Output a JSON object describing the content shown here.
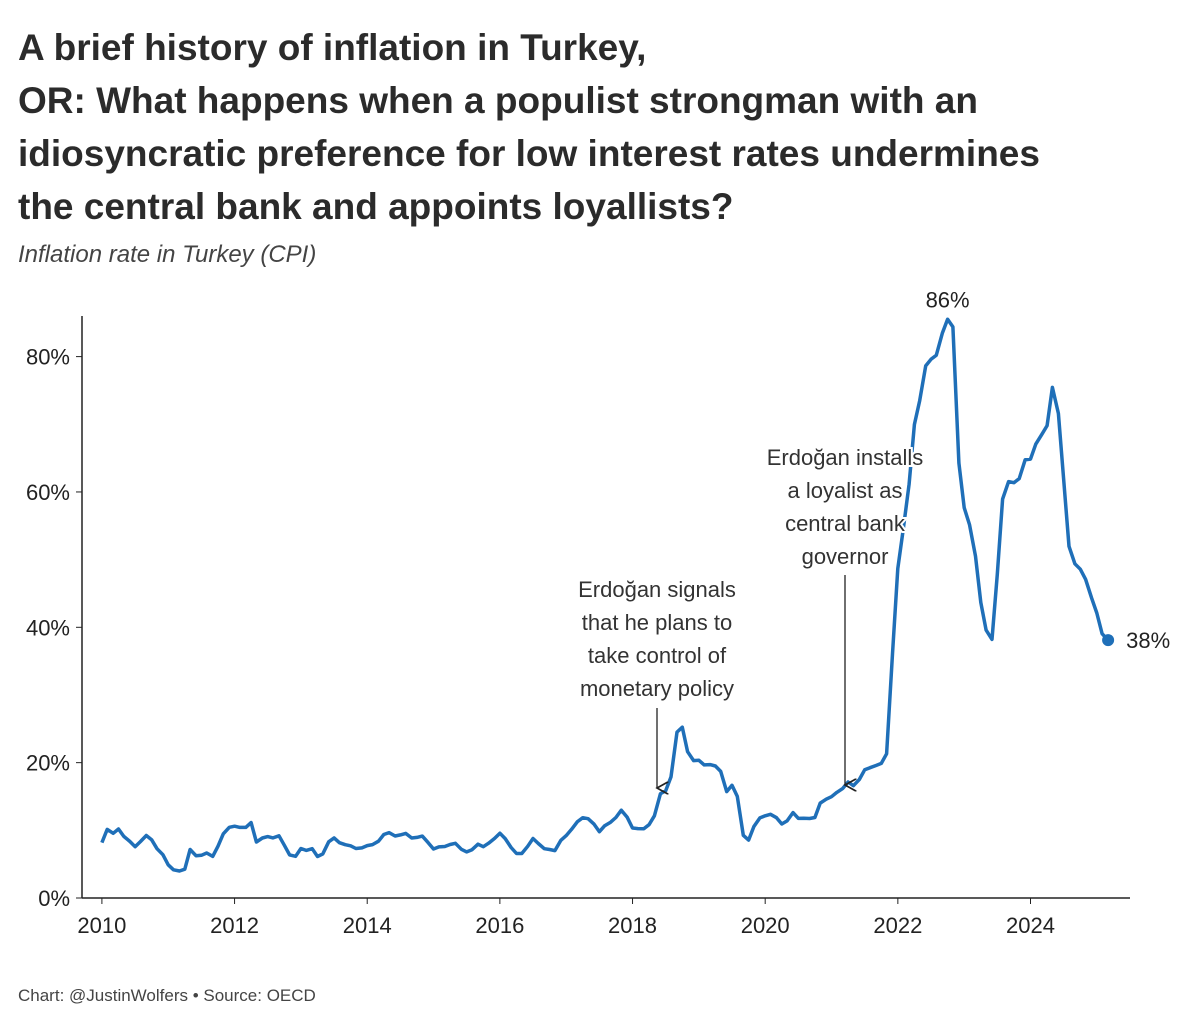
{
  "chart_data": {
    "type": "line",
    "title": [
      "A brief history of inflation in Turkey,",
      "OR: What happens when a populist strongman with an",
      "idiosyncratic preference for low interest rates undermines",
      "the central bank and appoints loyallists?"
    ],
    "subtitle": "Inflation rate in Turkey (CPI)",
    "footer": "Chart: @JustinWolfers • Source: OECD",
    "color": "#1f6fb8",
    "x": [
      2010,
      2010.08,
      2010.17,
      2010.25,
      2010.33,
      2010.42,
      2010.5,
      2010.58,
      2010.67,
      2010.75,
      2010.83,
      2010.92,
      2011,
      2011.08,
      2011.17,
      2011.25,
      2011.33,
      2011.42,
      2011.5,
      2011.58,
      2011.67,
      2011.75,
      2011.83,
      2011.92,
      2012,
      2012.08,
      2012.17,
      2012.25,
      2012.33,
      2012.42,
      2012.5,
      2012.58,
      2012.67,
      2012.75,
      2012.83,
      2012.92,
      2013,
      2013.08,
      2013.17,
      2013.25,
      2013.33,
      2013.42,
      2013.5,
      2013.58,
      2013.67,
      2013.75,
      2013.83,
      2013.92,
      2014,
      2014.08,
      2014.17,
      2014.25,
      2014.33,
      2014.42,
      2014.5,
      2014.58,
      2014.67,
      2014.75,
      2014.83,
      2014.92,
      2015,
      2015.08,
      2015.17,
      2015.25,
      2015.33,
      2015.42,
      2015.5,
      2015.58,
      2015.67,
      2015.75,
      2015.83,
      2015.92,
      2016,
      2016.08,
      2016.17,
      2016.25,
      2016.33,
      2016.42,
      2016.5,
      2016.58,
      2016.67,
      2016.75,
      2016.83,
      2016.92,
      2017,
      2017.08,
      2017.17,
      2017.25,
      2017.33,
      2017.42,
      2017.5,
      2017.58,
      2017.67,
      2017.75,
      2017.83,
      2017.92,
      2018,
      2018.08,
      2018.17,
      2018.25,
      2018.33,
      2018.42,
      2018.5,
      2018.58,
      2018.67,
      2018.75,
      2018.83,
      2018.92,
      2019,
      2019.08,
      2019.17,
      2019.25,
      2019.33,
      2019.42,
      2019.5,
      2019.58,
      2019.67,
      2019.75,
      2019.83,
      2019.92,
      2020,
      2020.08,
      2020.17,
      2020.25,
      2020.33,
      2020.42,
      2020.5,
      2020.58,
      2020.67,
      2020.75,
      2020.83,
      2020.92,
      2021,
      2021.08,
      2021.17,
      2021.25,
      2021.33,
      2021.42,
      2021.5,
      2021.58,
      2021.67,
      2021.75,
      2021.83,
      2021.92,
      2022,
      2022.08,
      2022.17,
      2022.25,
      2022.33,
      2022.42,
      2022.5,
      2022.58,
      2022.67,
      2022.75,
      2022.83,
      2022.92,
      2023,
      2023.08,
      2023.17,
      2023.25,
      2023.33,
      2023.42,
      2023.5,
      2023.58,
      2023.67,
      2023.75,
      2023.83,
      2023.92,
      2024,
      2024.08,
      2024.17,
      2024.25,
      2024.33,
      2024.42,
      2024.5,
      2024.58,
      2024.67,
      2024.75,
      2024.83,
      2024.92,
      2025,
      2025.08,
      2025.17
    ],
    "values": [
      8.19,
      10.13,
      9.56,
      10.19,
      9.1,
      8.37,
      7.58,
      8.33,
      9.24,
      8.62,
      7.29,
      6.4,
      4.9,
      4.16,
      3.99,
      4.26,
      7.17,
      6.24,
      6.31,
      6.65,
      6.15,
      7.66,
      9.48,
      10.45,
      10.61,
      10.43,
      10.43,
      11.14,
      8.28,
      8.87,
      9.07,
      8.88,
      9.19,
      7.8,
      6.37,
      6.16,
      7.31,
      7.03,
      7.29,
      6.13,
      6.51,
      8.3,
      8.88,
      8.17,
      7.88,
      7.71,
      7.32,
      7.4,
      7.75,
      7.89,
      8.39,
      9.38,
      9.66,
      9.16,
      9.32,
      9.54,
      8.86,
      8.96,
      9.15,
      8.17,
      7.24,
      7.55,
      7.61,
      7.91,
      8.09,
      7.2,
      6.81,
      7.14,
      7.95,
      7.58,
      8.1,
      8.81,
      9.58,
      8.78,
      7.46,
      6.57,
      6.58,
      7.64,
      8.79,
      8.05,
      7.28,
      7.16,
      7.0,
      8.53,
      9.22,
      10.13,
      11.29,
      11.87,
      11.72,
      10.9,
      9.79,
      10.68,
      11.2,
      11.9,
      12.98,
      11.92,
      10.35,
      10.26,
      10.23,
      10.85,
      12.15,
      15.39,
      15.85,
      17.9,
      24.52,
      25.24,
      21.62,
      20.3,
      20.35,
      19.67,
      19.71,
      19.5,
      18.71,
      15.72,
      16.65,
      15.01,
      9.26,
      8.55,
      10.56,
      11.84,
      12.15,
      12.37,
      11.86,
      10.94,
      11.39,
      12.62,
      11.76,
      11.77,
      11.75,
      11.89,
      14.03,
      14.6,
      14.97,
      15.61,
      16.19,
      17.14,
      16.59,
      17.53,
      18.95,
      19.25,
      19.58,
      19.89,
      21.31,
      36.08,
      48.69,
      54.44,
      61.14,
      69.97,
      73.5,
      78.62,
      79.6,
      80.21,
      83.45,
      85.51,
      84.39,
      64.27,
      57.68,
      55.18,
      50.51,
      43.68,
      39.59,
      38.21,
      47.83,
      58.94,
      61.53,
      61.36,
      61.98,
      64.77,
      64.86,
      67.07,
      68.5,
      69.8,
      75.45,
      71.6,
      61.78,
      51.97,
      49.38,
      48.58,
      47.09,
      44.38,
      42.12,
      39.05,
      38.1
    ],
    "value_labels": [
      null,
      null,
      null,
      null,
      null,
      null,
      null,
      null,
      null,
      null,
      null,
      null,
      null,
      null,
      null,
      null,
      null,
      null,
      null,
      null,
      null,
      null,
      null,
      null,
      null,
      null,
      null,
      null,
      null,
      null,
      null,
      null,
      null,
      null,
      null,
      null,
      null,
      null,
      null,
      null,
      null,
      null,
      null,
      null,
      null,
      null,
      null,
      null,
      null,
      null,
      null,
      null,
      null,
      null,
      null,
      null,
      null,
      null,
      null,
      null,
      null,
      null,
      null,
      null,
      null,
      null,
      null,
      null,
      null,
      null,
      null,
      null,
      null,
      null,
      null,
      null,
      null,
      null,
      null,
      null,
      null,
      null,
      null,
      null,
      null,
      null,
      null,
      null,
      null,
      null,
      null,
      null,
      null,
      null,
      null,
      null,
      null,
      null,
      null,
      null,
      null,
      null,
      null,
      null,
      null,
      null,
      null,
      null,
      null,
      null,
      null,
      null,
      null,
      null,
      null,
      null,
      null,
      null,
      null,
      null,
      null,
      null,
      null,
      null,
      null,
      null,
      null,
      null,
      null,
      null,
      null,
      null,
      null,
      null,
      null,
      null,
      null,
      null,
      null,
      null,
      null,
      null,
      null,
      null,
      null,
      null,
      null,
      null,
      null,
      null,
      null,
      null,
      null,
      "86%",
      null,
      null,
      null,
      null,
      null,
      null,
      null,
      null,
      null,
      null,
      null,
      null,
      null,
      null,
      null,
      null,
      null,
      null,
      null,
      null,
      null,
      null,
      null,
      null,
      null,
      null,
      null,
      null,
      "38%"
    ],
    "xlim": [
      2009.7,
      2025.5
    ],
    "ylim": [
      0,
      86
    ],
    "xticks": [
      2010,
      2012,
      2014,
      2016,
      2018,
      2020,
      2022,
      2024
    ],
    "yticks": [
      {
        "value": 0,
        "label": "0%"
      },
      {
        "value": 20,
        "label": "20%"
      },
      {
        "value": 40,
        "label": "40%"
      },
      {
        "value": 60,
        "label": "60%"
      },
      {
        "value": 80,
        "label": "80%"
      }
    ],
    "annotations": [
      {
        "text": [
          "Erdoğan signals",
          "that he plans to",
          "take control of",
          "monetary policy"
        ]
      },
      {
        "text": [
          "Erdoğan installs",
          "a loyalist as",
          "central bank",
          "governor"
        ]
      }
    ]
  }
}
